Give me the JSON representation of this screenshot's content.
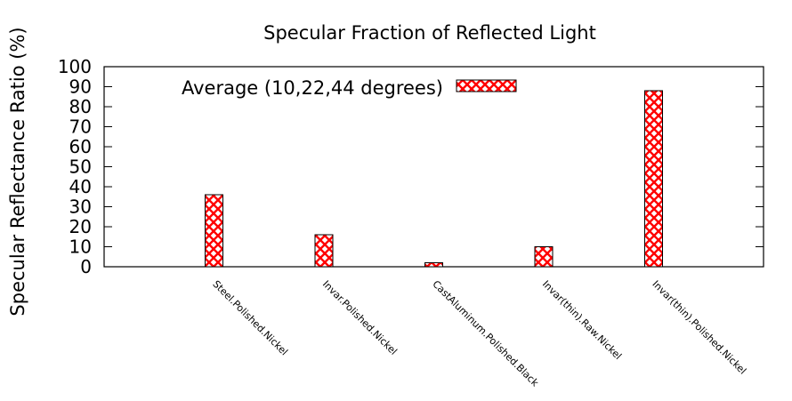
{
  "chart_data": {
    "type": "bar",
    "title": "Specular Fraction of Reflected Light",
    "xlabel": "",
    "ylabel": "Specular Reflectance Ratio (%)",
    "ylim": [
      0,
      100
    ],
    "yticks": [
      0,
      10,
      20,
      30,
      40,
      50,
      60,
      70,
      80,
      90,
      100
    ],
    "grid": false,
    "legend_position": "top-left",
    "categories": [
      "Steel.Polished.Nickel",
      "Invar.Polished.Nickel",
      "CastAluminum.Polished.Black",
      "Invar(thin).Raw.Nickel",
      "Invar(thin).Polished.Nickel"
    ],
    "series": [
      {
        "name": "Average (10,22,44 degrees)",
        "values": [
          36,
          16,
          2,
          10,
          88
        ],
        "color": "#ff0000",
        "fill_pattern": "crosshatch"
      }
    ]
  }
}
